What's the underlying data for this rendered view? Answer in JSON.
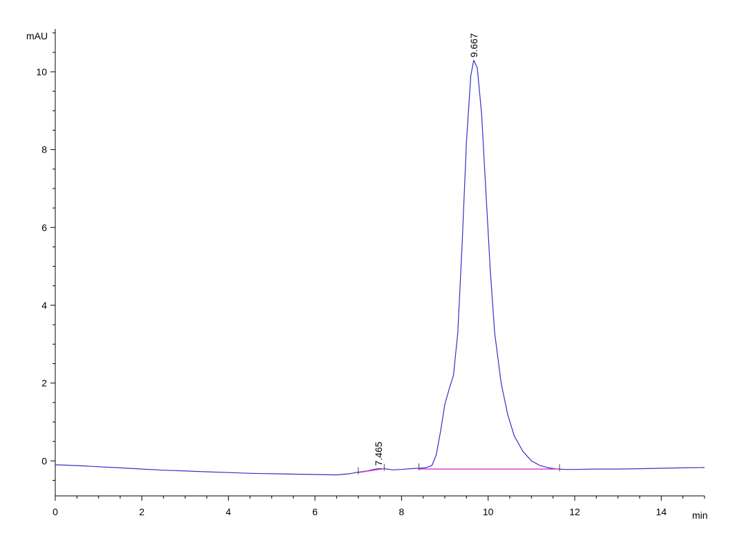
{
  "chart_data": {
    "type": "line",
    "title": "",
    "xlabel": "min",
    "ylabel": "mAU",
    "xlim": [
      0,
      15
    ],
    "ylim": [
      -0.9,
      11.1
    ],
    "grid": false,
    "x_ticks": [
      0,
      2,
      4,
      6,
      8,
      10,
      12,
      14
    ],
    "y_ticks": [
      0,
      2,
      4,
      6,
      8,
      10
    ],
    "series": [
      {
        "color": "#3030c8",
        "x": [
          0,
          0.5,
          1,
          1.5,
          2,
          2.5,
          3,
          3.5,
          4,
          4.5,
          5,
          5.5,
          6,
          6.5,
          6.8,
          7.0,
          7.2,
          7.35,
          7.465,
          7.6,
          7.8,
          8.0,
          8.2,
          8.4,
          8.55,
          8.7,
          8.8,
          8.9,
          9.0,
          9.1,
          9.2,
          9.3,
          9.4,
          9.5,
          9.6,
          9.667,
          9.75,
          9.85,
          9.95,
          10.05,
          10.15,
          10.3,
          10.45,
          10.6,
          10.8,
          11.0,
          11.2,
          11.4,
          11.6,
          11.8,
          12.0,
          12.5,
          13.0,
          13.5,
          14.0,
          14.5,
          15.0
        ],
        "y": [
          -0.1,
          -0.12,
          -0.15,
          -0.18,
          -0.21,
          -0.24,
          -0.26,
          -0.28,
          -0.3,
          -0.32,
          -0.33,
          -0.34,
          -0.35,
          -0.36,
          -0.33,
          -0.29,
          -0.26,
          -0.22,
          -0.2,
          -0.2,
          -0.23,
          -0.22,
          -0.2,
          -0.19,
          -0.18,
          -0.12,
          0.15,
          0.75,
          1.45,
          1.85,
          2.2,
          3.3,
          5.6,
          8.2,
          9.9,
          10.3,
          10.1,
          8.9,
          6.9,
          4.9,
          3.3,
          2.0,
          1.2,
          0.65,
          0.25,
          0.0,
          -0.12,
          -0.18,
          -0.21,
          -0.22,
          -0.22,
          -0.21,
          -0.21,
          -0.2,
          -0.19,
          -0.18,
          -0.17
        ]
      },
      {
        "color": "#e040d0",
        "x": [
          7.0,
          7.465,
          7.6
        ],
        "y": [
          -0.3,
          -0.22,
          -0.2
        ]
      },
      {
        "color": "#e040d0",
        "x": [
          8.4,
          11.65
        ],
        "y": [
          -0.21,
          -0.21
        ]
      }
    ],
    "annotations": [
      {
        "text": "7.465",
        "x": 7.465,
        "y": -0.2
      },
      {
        "text": "9.667",
        "x": 9.667,
        "y": 10.3
      }
    ],
    "integration_marks_x": [
      7.0,
      7.6,
      8.4,
      11.65
    ]
  }
}
